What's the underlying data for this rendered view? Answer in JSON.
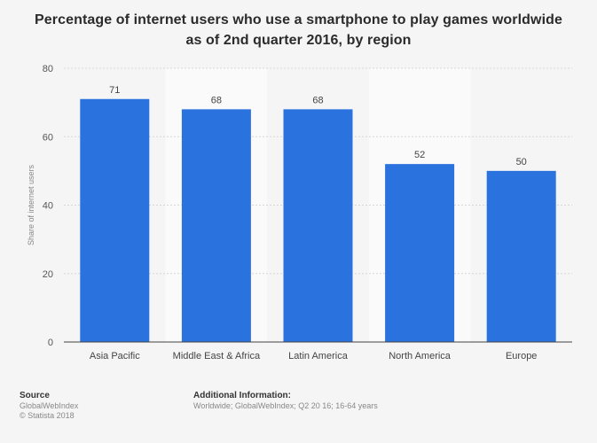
{
  "chart_data": {
    "type": "bar",
    "title": "Percentage of internet users who use a smartphone to play games worldwide as of 2nd quarter 2016, by region",
    "categories": [
      "Asia Pacific",
      "Middle East & Africa",
      "Latin America",
      "North America",
      "Europe"
    ],
    "values": [
      71,
      68,
      68,
      52,
      50
    ],
    "data_labels": [
      "71",
      "68",
      "68",
      "52",
      "50"
    ],
    "xlabel": "",
    "ylabel": "Share of internet users",
    "ylim": [
      0,
      80
    ],
    "yticks": [
      0,
      20,
      40,
      60,
      80
    ],
    "ytick_labels": [
      "0",
      "20",
      "40",
      "60",
      "80"
    ],
    "grid": true,
    "bar_color": "#2a72de",
    "legend": "none"
  },
  "footer": {
    "source_heading": "Source",
    "source_line1": "GlobalWebIndex",
    "source_line2": "© Statista 2018",
    "info_heading": "Additional Information:",
    "info_line1": "Worldwide; GlobalWebIndex; Q2 20 16; 16-64 years"
  }
}
